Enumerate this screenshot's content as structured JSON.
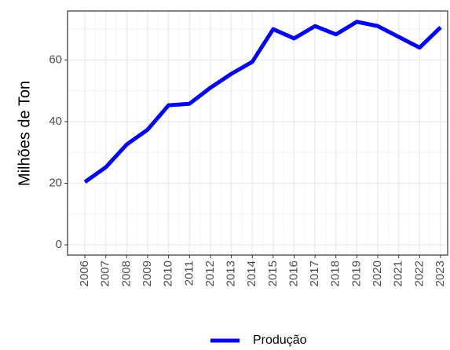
{
  "chart_data": {
    "type": "line",
    "ylabel": "Milhões de Ton",
    "x": [
      2006,
      2007,
      2008,
      2009,
      2010,
      2011,
      2012,
      2013,
      2014,
      2015,
      2016,
      2017,
      2018,
      2019,
      2020,
      2021,
      2022,
      2023
    ],
    "series": [
      {
        "name": "Produção",
        "color": "#0000ff",
        "values": [
          20.4,
          25.2,
          32.6,
          37.4,
          45.3,
          45.8,
          51,
          55.5,
          59.4,
          70,
          67,
          71,
          68.3,
          72.4,
          71,
          67.5,
          64,
          70.6
        ]
      }
    ],
    "xlim": [
      2005.17,
      2023.34
    ],
    "xticks": [
      2006,
      2007,
      2008,
      2009,
      2010,
      2011,
      2012,
      2013,
      2014,
      2015,
      2016,
      2017,
      2018,
      2019,
      2020,
      2021,
      2022,
      2023
    ],
    "ylim": [
      -3.3,
      75.9
    ],
    "yticks": [
      0,
      20,
      40,
      60
    ],
    "grid": true,
    "legend": "bottom"
  }
}
